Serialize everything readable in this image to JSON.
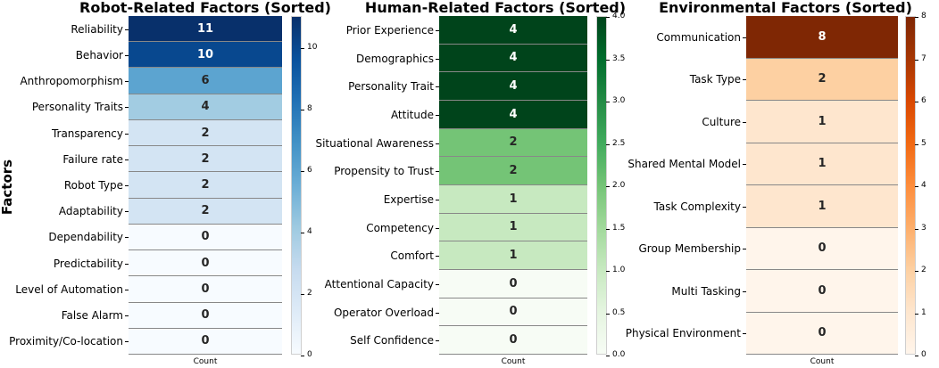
{
  "y_axis_label": "Factors",
  "chart_data": [
    {
      "type": "heatmap",
      "title": "Robot-Related Factors (Sorted)",
      "xlabel": "",
      "x_tick": "Count",
      "ylabel": "Factors",
      "colormap": "Blues",
      "categories": [
        "Reliability",
        "Behavior",
        "Anthropomorphism",
        "Personality Traits",
        "Transparency",
        "Failure rate",
        "Robot Type",
        "Adaptability",
        "Dependability",
        "Predictability",
        "Level of Automation",
        "False Alarm",
        "Proximity/Co-location"
      ],
      "values": [
        11,
        10,
        6,
        4,
        2,
        2,
        2,
        2,
        0,
        0,
        0,
        0,
        0
      ],
      "colorbar_range": [
        0,
        11
      ],
      "colorbar_ticks": [
        0,
        2,
        4,
        6,
        8,
        10
      ],
      "colorbar_colors": [
        "#f7fbff",
        "#deebf7",
        "#c6dbef",
        "#9ecae1",
        "#6baed6",
        "#4292c6",
        "#2171b5",
        "#08519c",
        "#08306b"
      ]
    },
    {
      "type": "heatmap",
      "title": "Human-Related Factors (Sorted)",
      "xlabel": "",
      "x_tick": "Count",
      "colormap": "Greens",
      "categories": [
        "Prior Experience",
        "Demographics",
        "Personality Trait",
        "Attitude",
        "Situational Awareness",
        "Propensity to Trust",
        "Expertise",
        "Competency",
        "Comfort",
        "Attentional Capacity",
        "Operator Overload",
        "Self Confidence"
      ],
      "values": [
        4,
        4,
        4,
        4,
        2,
        2,
        1,
        1,
        1,
        0,
        0,
        0
      ],
      "colorbar_range": [
        0,
        4
      ],
      "colorbar_ticks": [
        0.0,
        0.5,
        1.0,
        1.5,
        2.0,
        2.5,
        3.0,
        3.5,
        4.0
      ],
      "colorbar_tick_labels": [
        "0.0",
        "0.5",
        "1.0",
        "1.5",
        "2.0",
        "2.5",
        "3.0",
        "3.5",
        "4.0"
      ],
      "colorbar_colors": [
        "#f7fcf5",
        "#e5f5e0",
        "#c7e9c0",
        "#a1d99b",
        "#74c476",
        "#41ab5d",
        "#238b45",
        "#006d2c",
        "#00441b"
      ]
    },
    {
      "type": "heatmap",
      "title": "Environmental Factors (Sorted)",
      "xlabel": "",
      "x_tick": "Count",
      "colormap": "Oranges",
      "categories": [
        "Communication",
        "Task Type",
        "Culture",
        "Shared Mental Model",
        "Task Complexity",
        "Group Membership",
        "Multi Tasking",
        "Physical Environment"
      ],
      "values": [
        8,
        2,
        1,
        1,
        1,
        0,
        0,
        0
      ],
      "colorbar_range": [
        0,
        8
      ],
      "colorbar_ticks": [
        0,
        1,
        2,
        3,
        4,
        5,
        6,
        7,
        8
      ],
      "colorbar_colors": [
        "#fff5eb",
        "#fee6ce",
        "#fdd0a2",
        "#fdae6b",
        "#fd8d3c",
        "#f16913",
        "#d94801",
        "#a63603",
        "#7f2704"
      ]
    }
  ]
}
